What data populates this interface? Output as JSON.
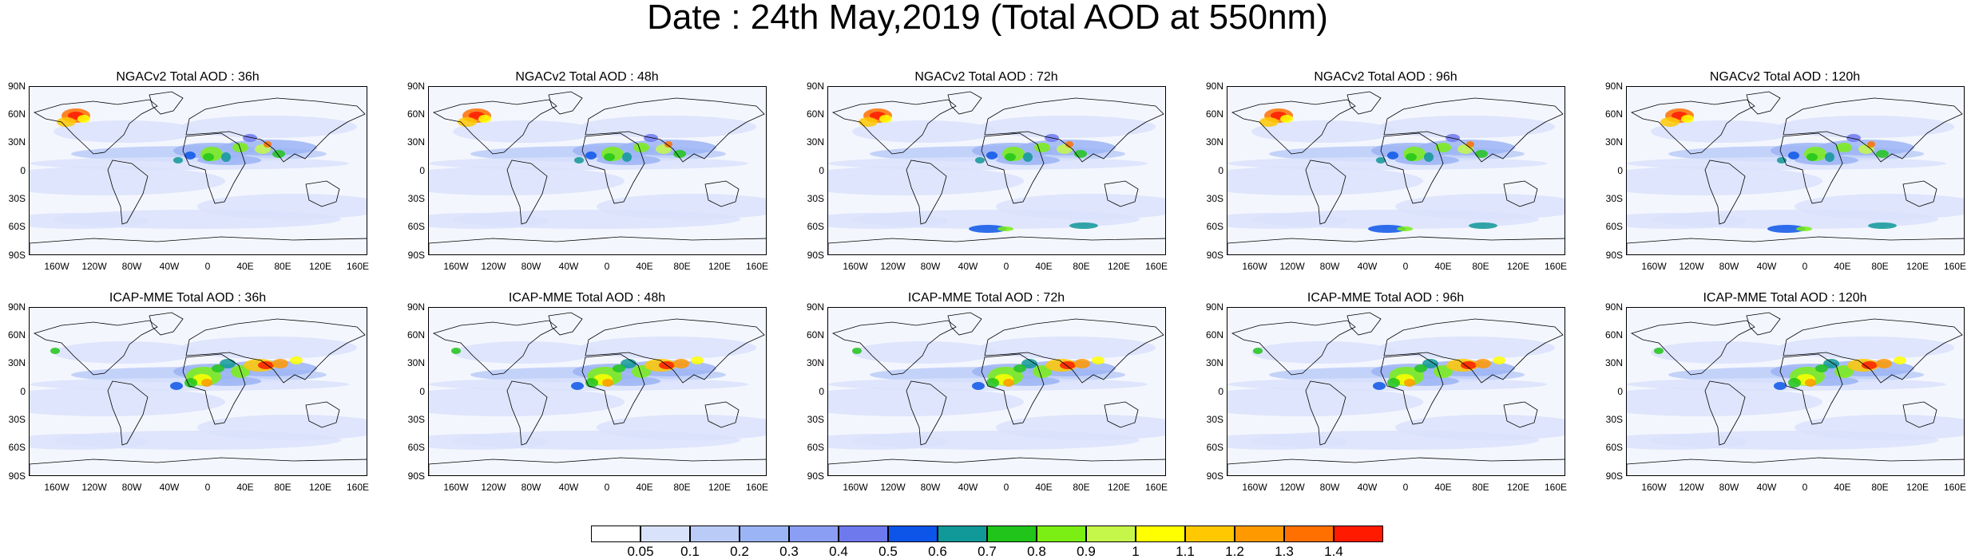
{
  "title": "Date : 24th May,2019 (Total AOD at 550nm)",
  "lat_labels": [
    "90N",
    "60N",
    "30N",
    "0",
    "30S",
    "60S",
    "90S"
  ],
  "lon_labels": [
    "160W",
    "120W",
    "80W",
    "40W",
    "0",
    "40E",
    "80E",
    "120E",
    "160E"
  ],
  "panels": [
    {
      "title": "NGACv2 Total AOD : 36h",
      "model": "NGACv2",
      "lead": "36h"
    },
    {
      "title": "NGACv2 Total AOD : 48h",
      "model": "NGACv2",
      "lead": "48h"
    },
    {
      "title": "NGACv2 Total AOD : 72h",
      "model": "NGACv2",
      "lead": "72h"
    },
    {
      "title": "NGACv2 Total AOD : 96h",
      "model": "NGACv2",
      "lead": "96h"
    },
    {
      "title": "NGACv2 Total AOD : 120h",
      "model": "NGACv2",
      "lead": "120h"
    },
    {
      "title": "ICAP-MME Total AOD : 36h",
      "model": "ICAP-MME",
      "lead": "36h"
    },
    {
      "title": "ICAP-MME Total AOD : 48h",
      "model": "ICAP-MME",
      "lead": "48h"
    },
    {
      "title": "ICAP-MME Total AOD : 72h",
      "model": "ICAP-MME",
      "lead": "72h"
    },
    {
      "title": "ICAP-MME Total AOD : 96h",
      "model": "ICAP-MME",
      "lead": "96h"
    },
    {
      "title": "ICAP-MME Total AOD : 120h",
      "model": "ICAP-MME",
      "lead": "120h"
    }
  ],
  "colorbar": {
    "labels": [
      "0.05",
      "0.1",
      "0.2",
      "0.3",
      "0.4",
      "0.5",
      "0.6",
      "0.7",
      "0.8",
      "0.9",
      "1",
      "1.1",
      "1.2",
      "1.3",
      "1.4"
    ],
    "colors": [
      "#ffffff",
      "#d9e2fb",
      "#bacbf8",
      "#9bb4f5",
      "#8a9ff3",
      "#6f79ee",
      "#0c55e8",
      "#119898",
      "#21c41a",
      "#7bee14",
      "#c5f74a",
      "#ffff00",
      "#ffc800",
      "#ff9900",
      "#ff7000",
      "#ff1a00"
    ]
  }
}
